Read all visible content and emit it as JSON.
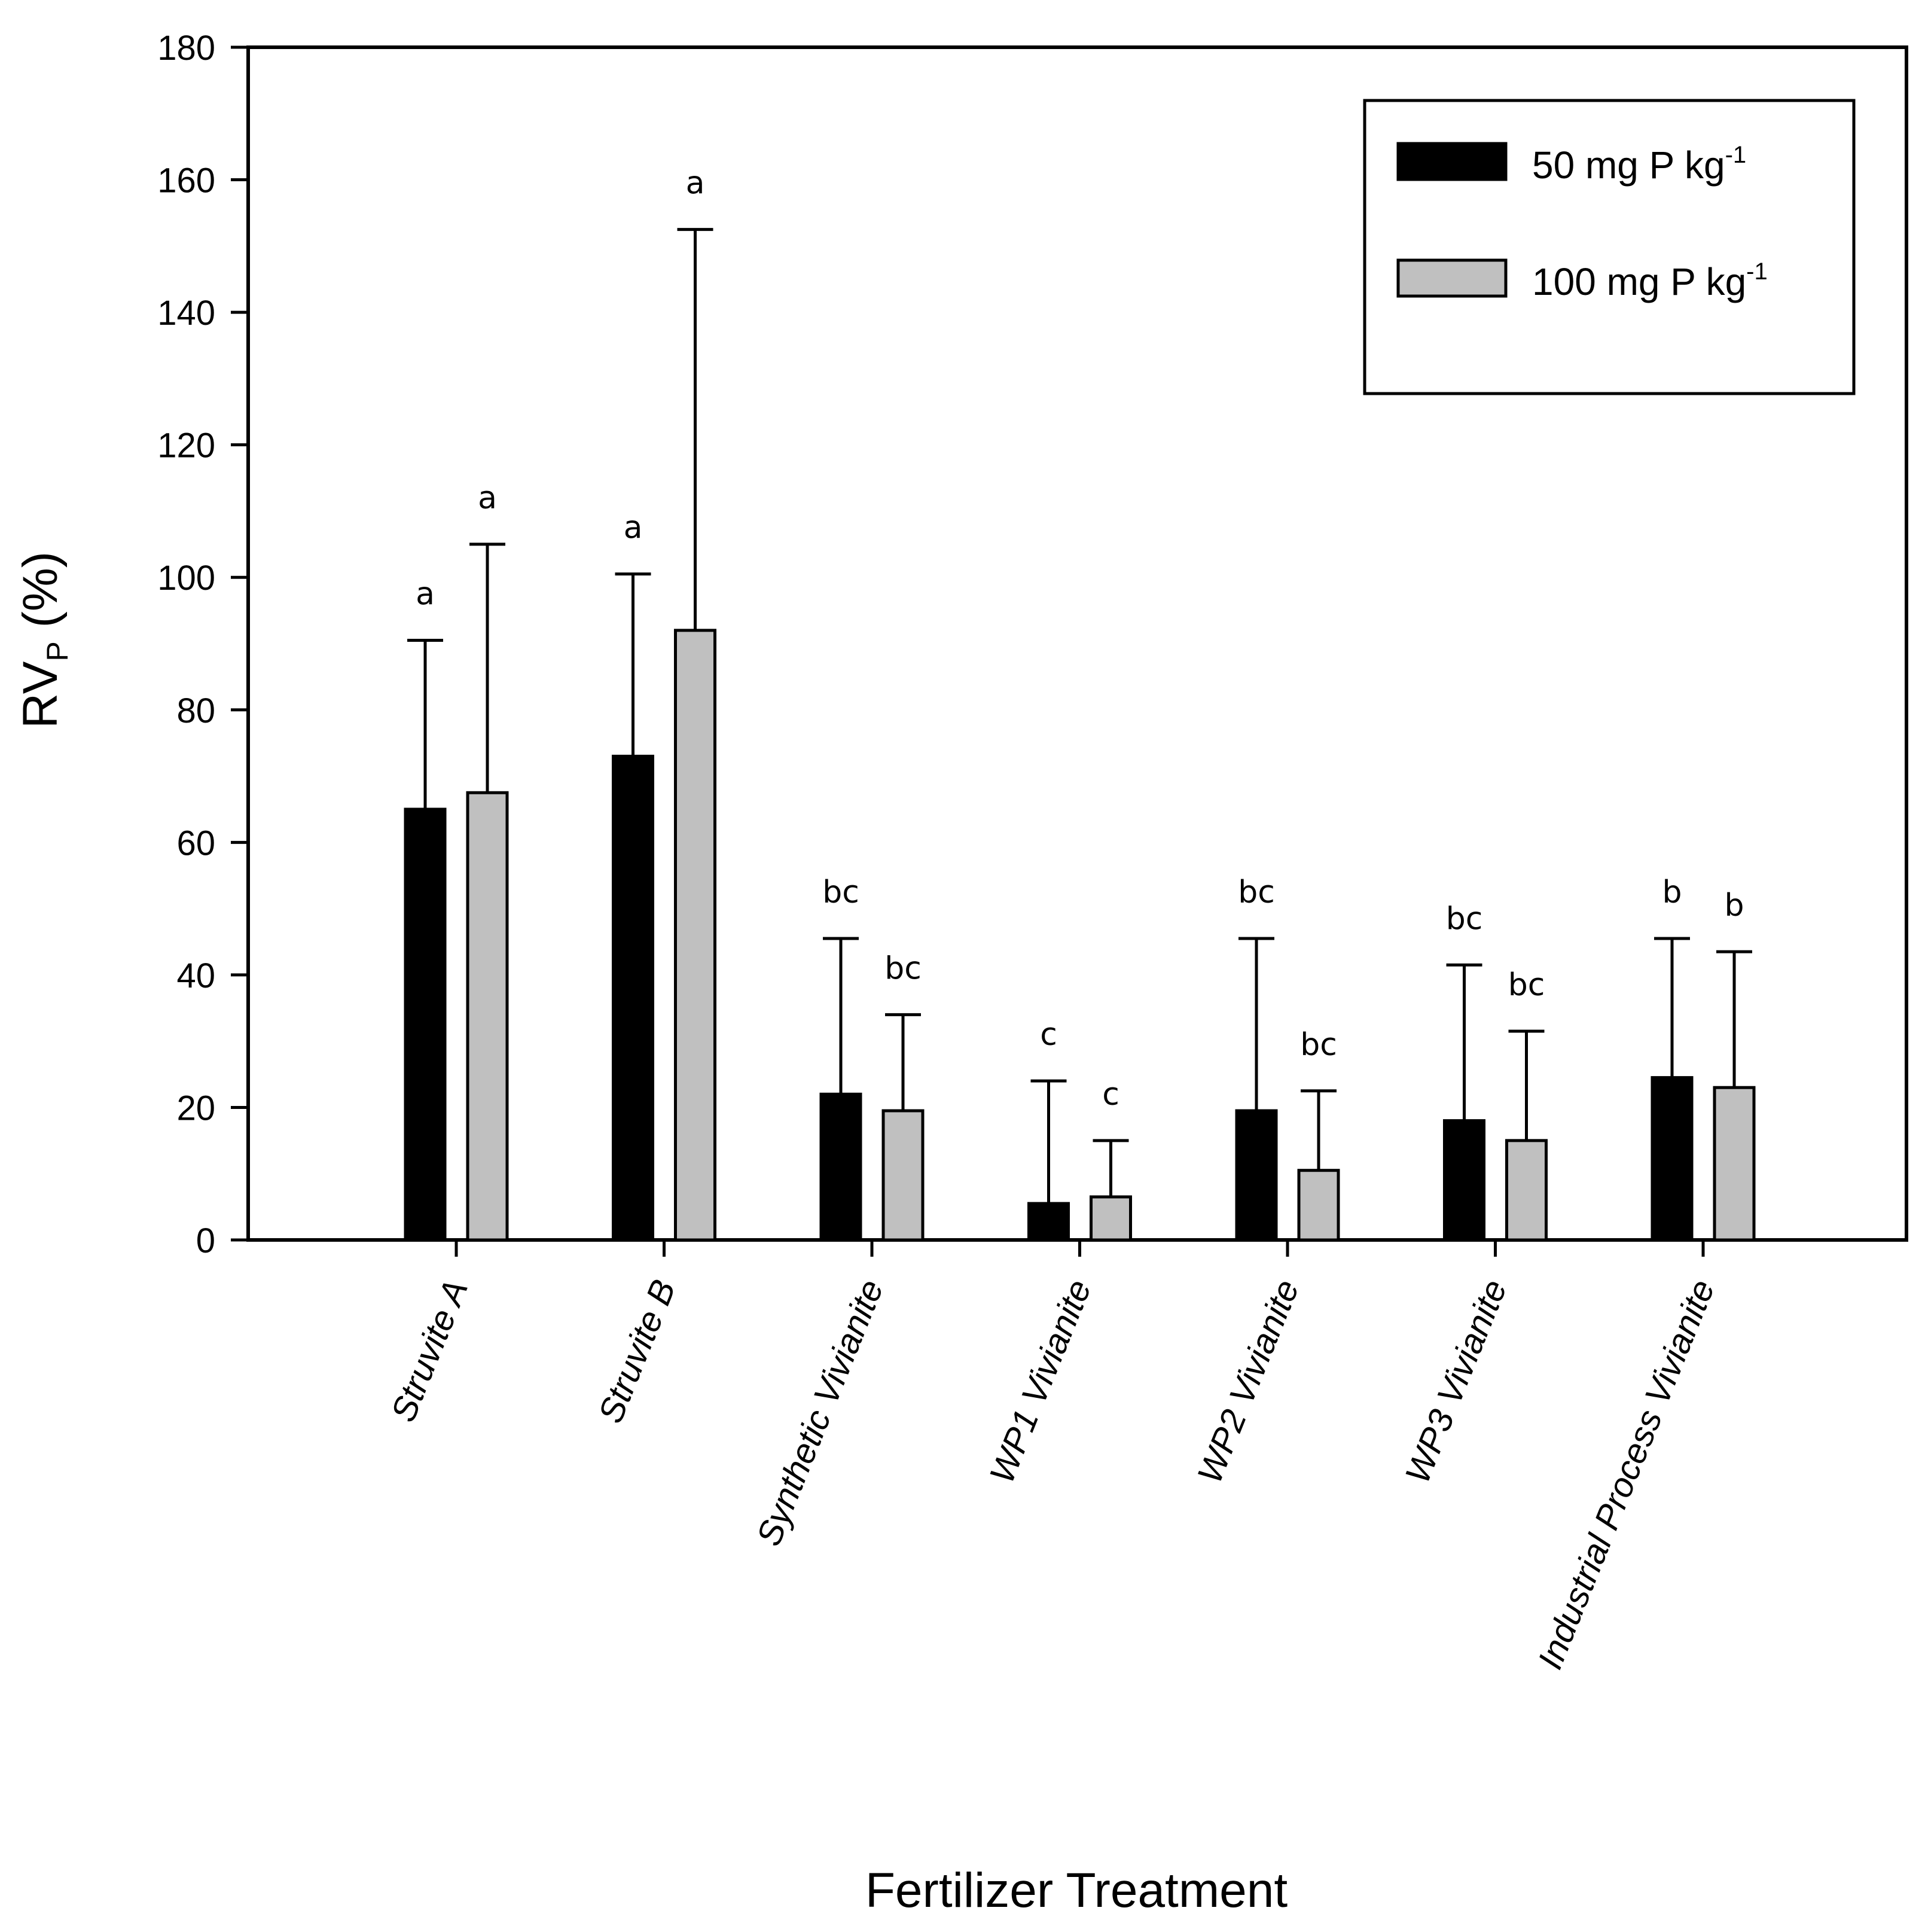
{
  "chart_data": {
    "type": "bar",
    "title": "",
    "xlabel": "Fertilizer Treatment",
    "ylabel": {
      "main": "RV",
      "sub": "P",
      "suffix": " (%)"
    },
    "ylim": [
      0,
      180
    ],
    "yticks": [
      0,
      20,
      40,
      60,
      80,
      100,
      120,
      140,
      160,
      180
    ],
    "grid": false,
    "legend_position": "top-right",
    "categories": [
      "Struvite A",
      "Struvite B",
      "Synthetic Vivianite",
      "WP1 Vivianite",
      "WP2 Vivianite",
      "WP3 Vivianite",
      "Industrial Process Vivianite"
    ],
    "series": [
      {
        "name": "50 mg P kg",
        "name_sup": "-1",
        "color": "#000000",
        "values": [
          65,
          73,
          22,
          5.5,
          19.5,
          18,
          24.5
        ],
        "error": [
          25.5,
          27.5,
          23.5,
          18.5,
          26,
          23.5,
          21
        ],
        "letters": [
          "a",
          "a",
          "bc",
          "c",
          "bc",
          "bc",
          "b"
        ]
      },
      {
        "name": "100 mg P kg",
        "name_sup": "-1",
        "color": "#c0c0c0",
        "values": [
          67.5,
          92,
          19.5,
          6.5,
          10.5,
          15,
          23
        ],
        "error": [
          37.5,
          60.5,
          14.5,
          8.5,
          12,
          16.5,
          20.5
        ],
        "letters": [
          "a",
          "a",
          "bc",
          "c",
          "bc",
          "bc",
          "b"
        ]
      }
    ]
  }
}
